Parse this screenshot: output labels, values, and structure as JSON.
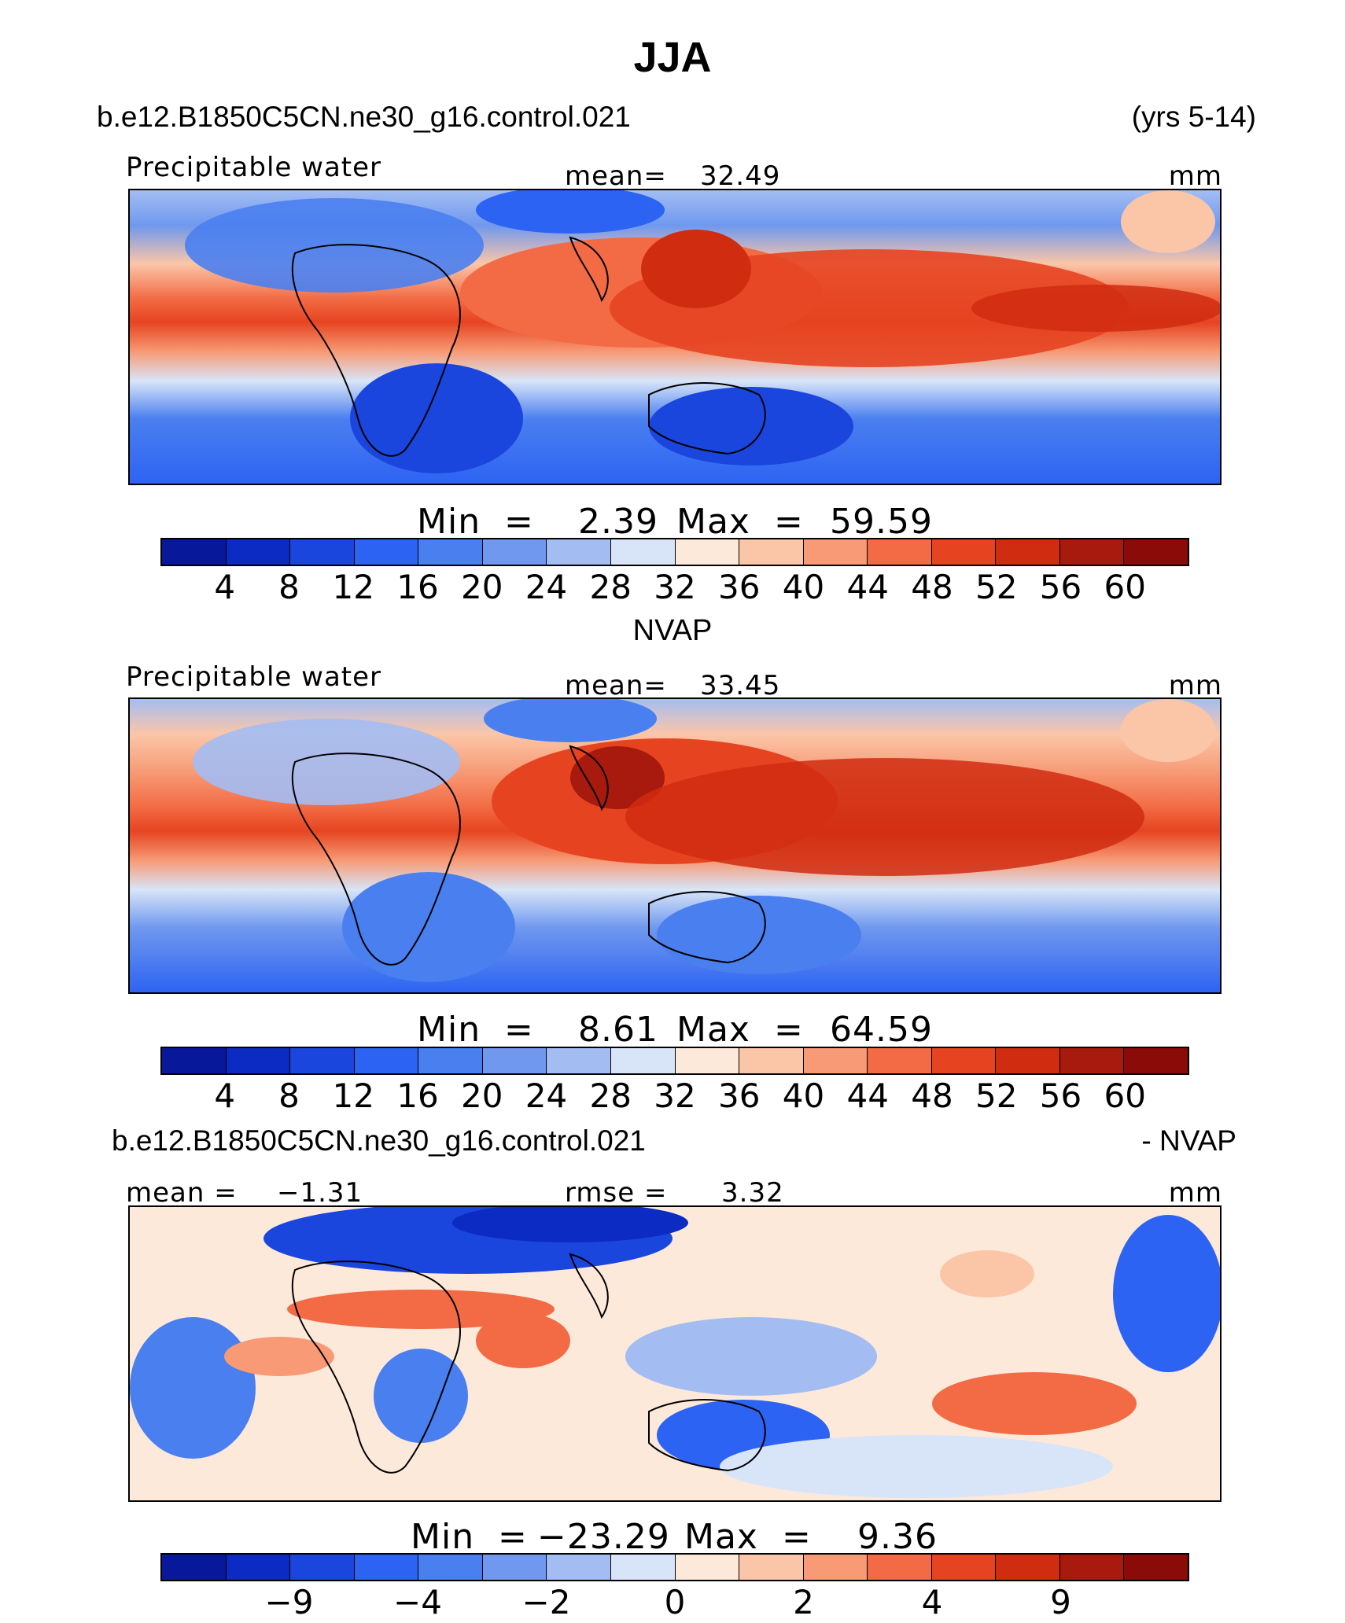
{
  "title": "JJA",
  "colors": {
    "palette": [
      "#08189a",
      "#0b2bc2",
      "#1a46de",
      "#2d63f2",
      "#4a7ff0",
      "#6f98ee",
      "#a3bdf3",
      "#d8e5f8",
      "#fde9da",
      "#fbc6a8",
      "#f79a75",
      "#f26b44",
      "#e64421",
      "#d02c10",
      "#a81a0e",
      "#8a0b07"
    ],
    "land_outline": "#000000"
  },
  "panel1": {
    "case_name": "b.e12.B1850C5CN.ne30_g16.control.021",
    "years": "(yrs 5-14)",
    "variable": "Precipitable water",
    "mean_label": "mean=",
    "mean_value": "32.49",
    "units": "mm",
    "min_label": "Min  =",
    "min_value": "2.39",
    "max_label": "Max  =",
    "max_value": "59.59",
    "ticks": [
      "4",
      "8",
      "12",
      "16",
      "20",
      "24",
      "28",
      "32",
      "36",
      "40",
      "44",
      "48",
      "52",
      "56",
      "60"
    ]
  },
  "panel2": {
    "title": "NVAP",
    "variable": "Precipitable water",
    "mean_label": "mean=",
    "mean_value": "33.45",
    "units": "mm",
    "min_label": "Min  =",
    "min_value": "8.61",
    "max_label": "Max  =",
    "max_value": "64.59",
    "ticks": [
      "4",
      "8",
      "12",
      "16",
      "20",
      "24",
      "28",
      "32",
      "36",
      "40",
      "44",
      "48",
      "52",
      "56",
      "60"
    ]
  },
  "panel3": {
    "case_name": "b.e12.B1850C5CN.ne30_g16.control.021",
    "minus_obs": "- NVAP",
    "mean_label": "mean  =",
    "mean_value": "−1.31",
    "rmse_label": "rmse  =",
    "rmse_value": "3.32",
    "units": "mm",
    "min_label": "Min  =",
    "min_value": "−23.29",
    "max_label": "Max  =",
    "max_value": "9.36",
    "ticks": [
      "−9",
      "−4",
      "−2",
      "0",
      "2",
      "4",
      "9"
    ]
  }
}
